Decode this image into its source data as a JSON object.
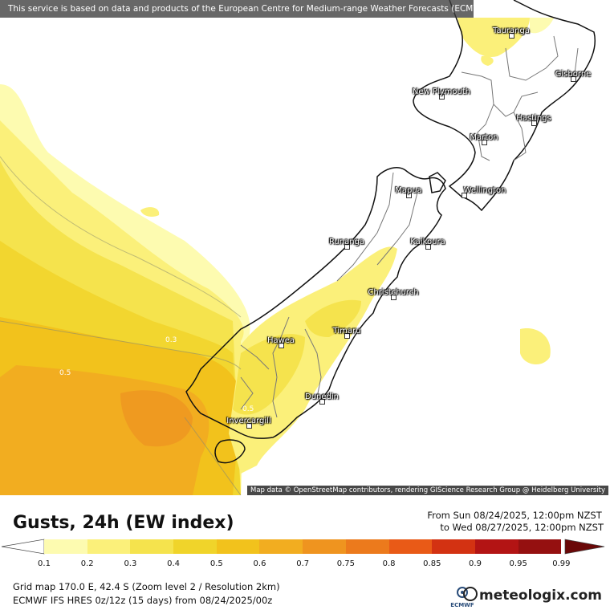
{
  "notice": "This service is based on data and products of the European Centre for Medium-range Weather Forecasts (ECMWF)",
  "attribution": "Map data © OpenStreetMap contributors, rendering GIScience Research Group @ Heidelberg University",
  "cities": {
    "tauranga": "Tauranga",
    "gisborne": "Gisborne",
    "new_plymouth": "New Plymouth",
    "hastings": "Hastings",
    "marton": "Marton",
    "wellington": "Wellington",
    "mapua": "Mapua",
    "runanga": "Runanga",
    "kaikoura": "Kaikoura",
    "christchurch": "Christchurch",
    "timaru": "Timaru",
    "hawea": "Hawea",
    "dunedin": "Dunedin",
    "invercargill": "Invercargill"
  },
  "contour_labels": {
    "c1": "0.3",
    "c2": "0.5",
    "c3": "0.5"
  },
  "title": "Gusts, 24h (EW index)",
  "date_from": "From Sun 08/24/2025, 12:00pm NZST",
  "date_to": "to Wed 08/27/2025, 12:00pm NZST",
  "legend": {
    "ticks": [
      "0.1",
      "0.2",
      "0.3",
      "0.4",
      "0.5",
      "0.6",
      "0.7",
      "0.75",
      "0.8",
      "0.85",
      "0.9",
      "0.95",
      "0.99"
    ],
    "colors": [
      "#fdfbb0",
      "#fbf07a",
      "#f5e34d",
      "#f0d42a",
      "#f2c21c",
      "#f2ad20",
      "#ef941f",
      "#ec7a1c",
      "#e95a17",
      "#d33212",
      "#b31414",
      "#951010",
      "#7a0c0c"
    ]
  },
  "grid_info": "Grid map 170.0 E, 42.4 S (Zoom level 2 / Resolution 2km)",
  "model_info": "ECMWF IFS HRES 0z/12z (15 days) from 08/24/2025/00z",
  "logo_text": "meteologix.com",
  "ecmwf_text": "ECMWF",
  "icons": {
    "ecmwf_logo": "ecmwf-logo-icon",
    "meteologix_logo": "meteologix-logo-icon"
  }
}
